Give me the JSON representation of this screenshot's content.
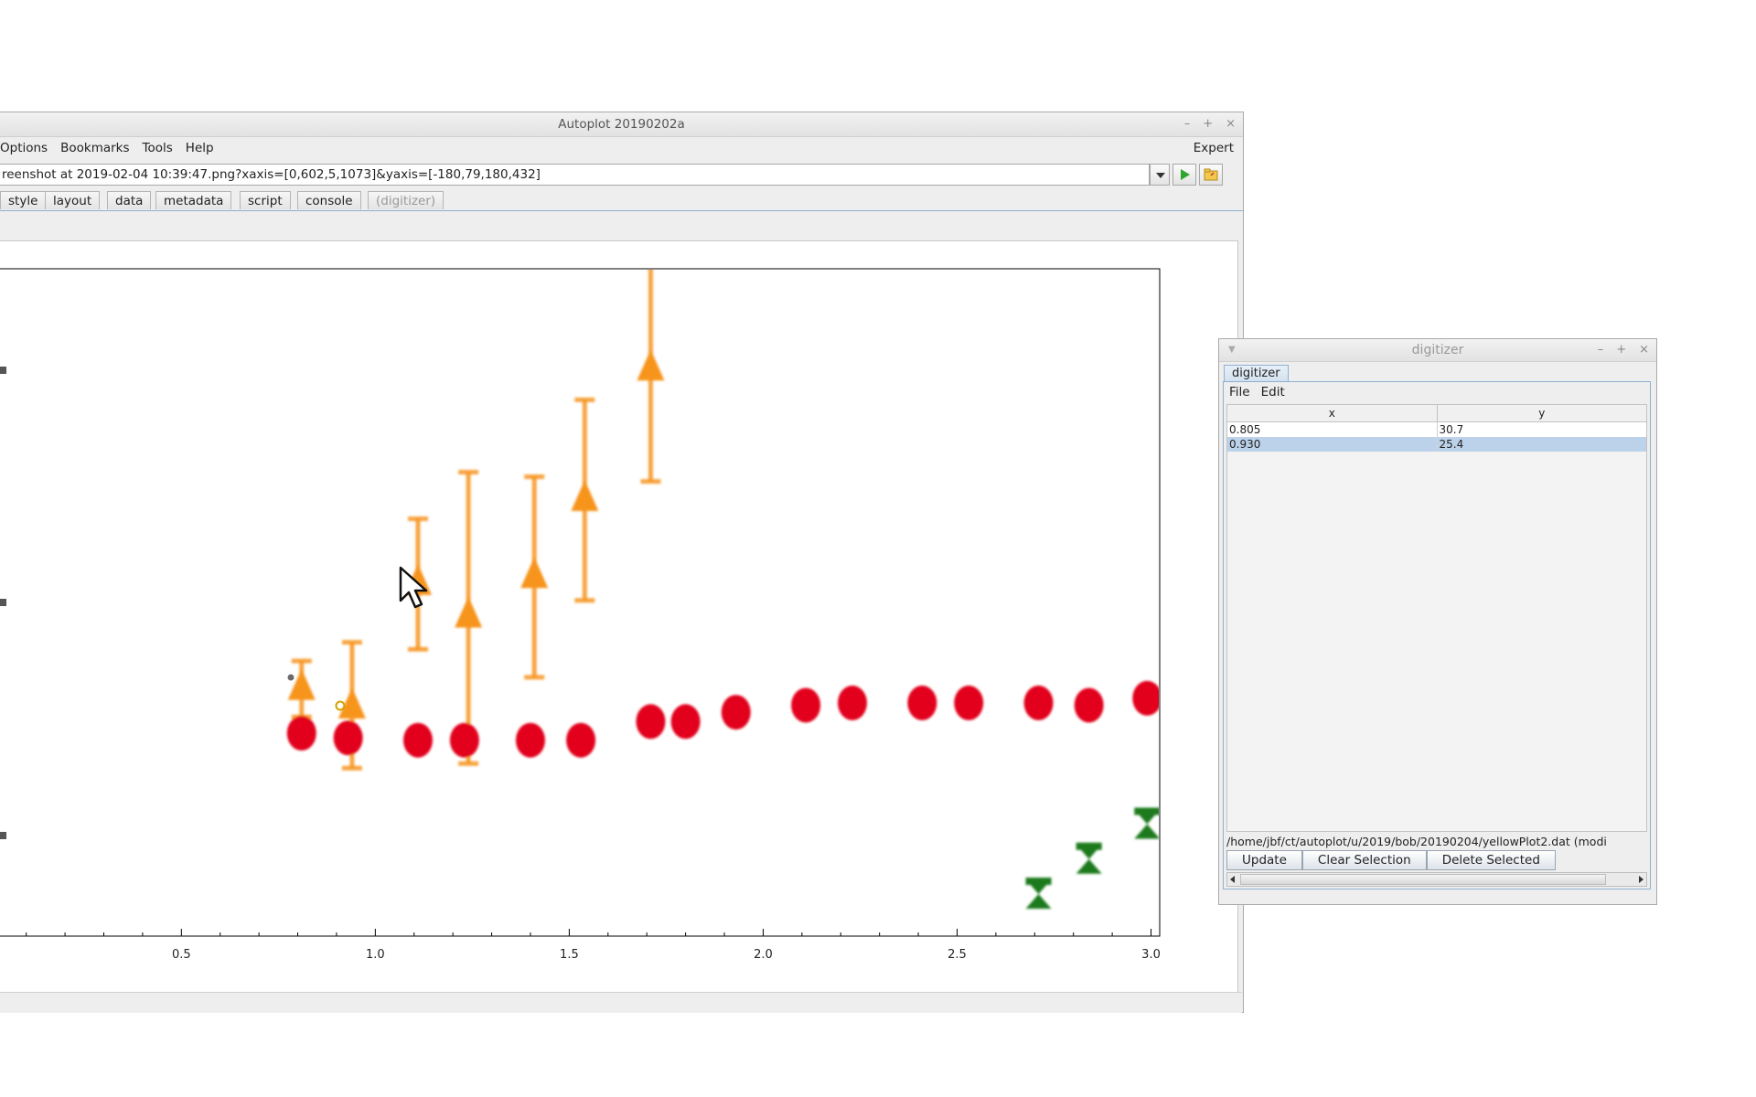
{
  "main_window": {
    "title": "Autoplot 20190202a",
    "menu": [
      "Options",
      "Bookmarks",
      "Tools",
      "Help"
    ],
    "expert_label": "Expert",
    "url": "reenshot at 2019-02-04 10:39:47.png?xaxis=[0,602,5,1073]&yaxis=[-180,79,180,432]",
    "tabs": [
      "style",
      "layout",
      "data",
      "metadata",
      "script",
      "console",
      "(digitizer)"
    ]
  },
  "plot": {
    "x_tick_labels": [
      "0.5",
      "1.0",
      "1.5",
      "2.0",
      "2.5",
      "3.0"
    ],
    "colors": {
      "orange": "#f7941d",
      "red": "#e2001a",
      "green": "#1a7a1a"
    }
  },
  "chart_data": {
    "type": "scatter",
    "xlim": [
      0.03,
      3.02
    ],
    "x_ticks": [
      0.5,
      1.0,
      1.5,
      2.0,
      2.5,
      3.0
    ],
    "grid": false,
    "series": [
      {
        "color": "#f7941d",
        "marker": "triangle-up",
        "errorbars": true,
        "points": [
          {
            "x": 0.81,
            "y": 0.55,
            "lo": 0.43,
            "hi": 0.67
          },
          {
            "x": 0.94,
            "y": 0.47,
            "lo": 0.21,
            "hi": 0.75
          },
          {
            "x": 1.11,
            "y": 1.0,
            "lo": 0.72,
            "hi": 1.28
          },
          {
            "x": 1.24,
            "y": 0.86,
            "lo": 0.23,
            "hi": 1.48
          },
          {
            "x": 1.41,
            "y": 1.03,
            "lo": 0.6,
            "hi": 1.46
          },
          {
            "x": 1.54,
            "y": 1.36,
            "lo": 0.93,
            "hi": 1.79
          },
          {
            "x": 1.71,
            "y": 1.92,
            "lo": 1.44,
            "hi": 2.4
          }
        ]
      },
      {
        "color": "#e2001a",
        "marker": "circle",
        "errorbars": false,
        "points": [
          {
            "x": 0.81,
            "y": 0.36
          },
          {
            "x": 0.93,
            "y": 0.34
          },
          {
            "x": 1.11,
            "y": 0.33
          },
          {
            "x": 1.23,
            "y": 0.33
          },
          {
            "x": 1.4,
            "y": 0.33
          },
          {
            "x": 1.53,
            "y": 0.33
          },
          {
            "x": 1.71,
            "y": 0.41
          },
          {
            "x": 1.8,
            "y": 0.41
          },
          {
            "x": 1.93,
            "y": 0.45
          },
          {
            "x": 2.11,
            "y": 0.48
          },
          {
            "x": 2.23,
            "y": 0.49
          },
          {
            "x": 2.41,
            "y": 0.49
          },
          {
            "x": 2.53,
            "y": 0.49
          },
          {
            "x": 2.71,
            "y": 0.49
          },
          {
            "x": 2.84,
            "y": 0.48
          },
          {
            "x": 2.99,
            "y": 0.51
          }
        ]
      },
      {
        "color": "#1a7a1a",
        "marker": "hourglass",
        "errorbars": false,
        "points": [
          {
            "x": 2.71,
            "y": -0.33
          },
          {
            "x": 2.84,
            "y": -0.18
          },
          {
            "x": 2.99,
            "y": -0.03
          }
        ]
      }
    ]
  },
  "digitizer": {
    "title": "digitizer",
    "tab_label": "digitizer",
    "menu": [
      "File",
      "Edit"
    ],
    "columns": [
      "x",
      "y"
    ],
    "rows": [
      {
        "x": "0.805",
        "y": "30.7"
      },
      {
        "x": "0.930",
        "y": "25.4"
      }
    ],
    "selected_row": 1,
    "file_path": "/home/jbf/ct/autoplot/u/2019/bob/20190204/yellowPlot2.dat (modi",
    "buttons": [
      "Update",
      "Clear Selection",
      "Delete Selected"
    ]
  }
}
